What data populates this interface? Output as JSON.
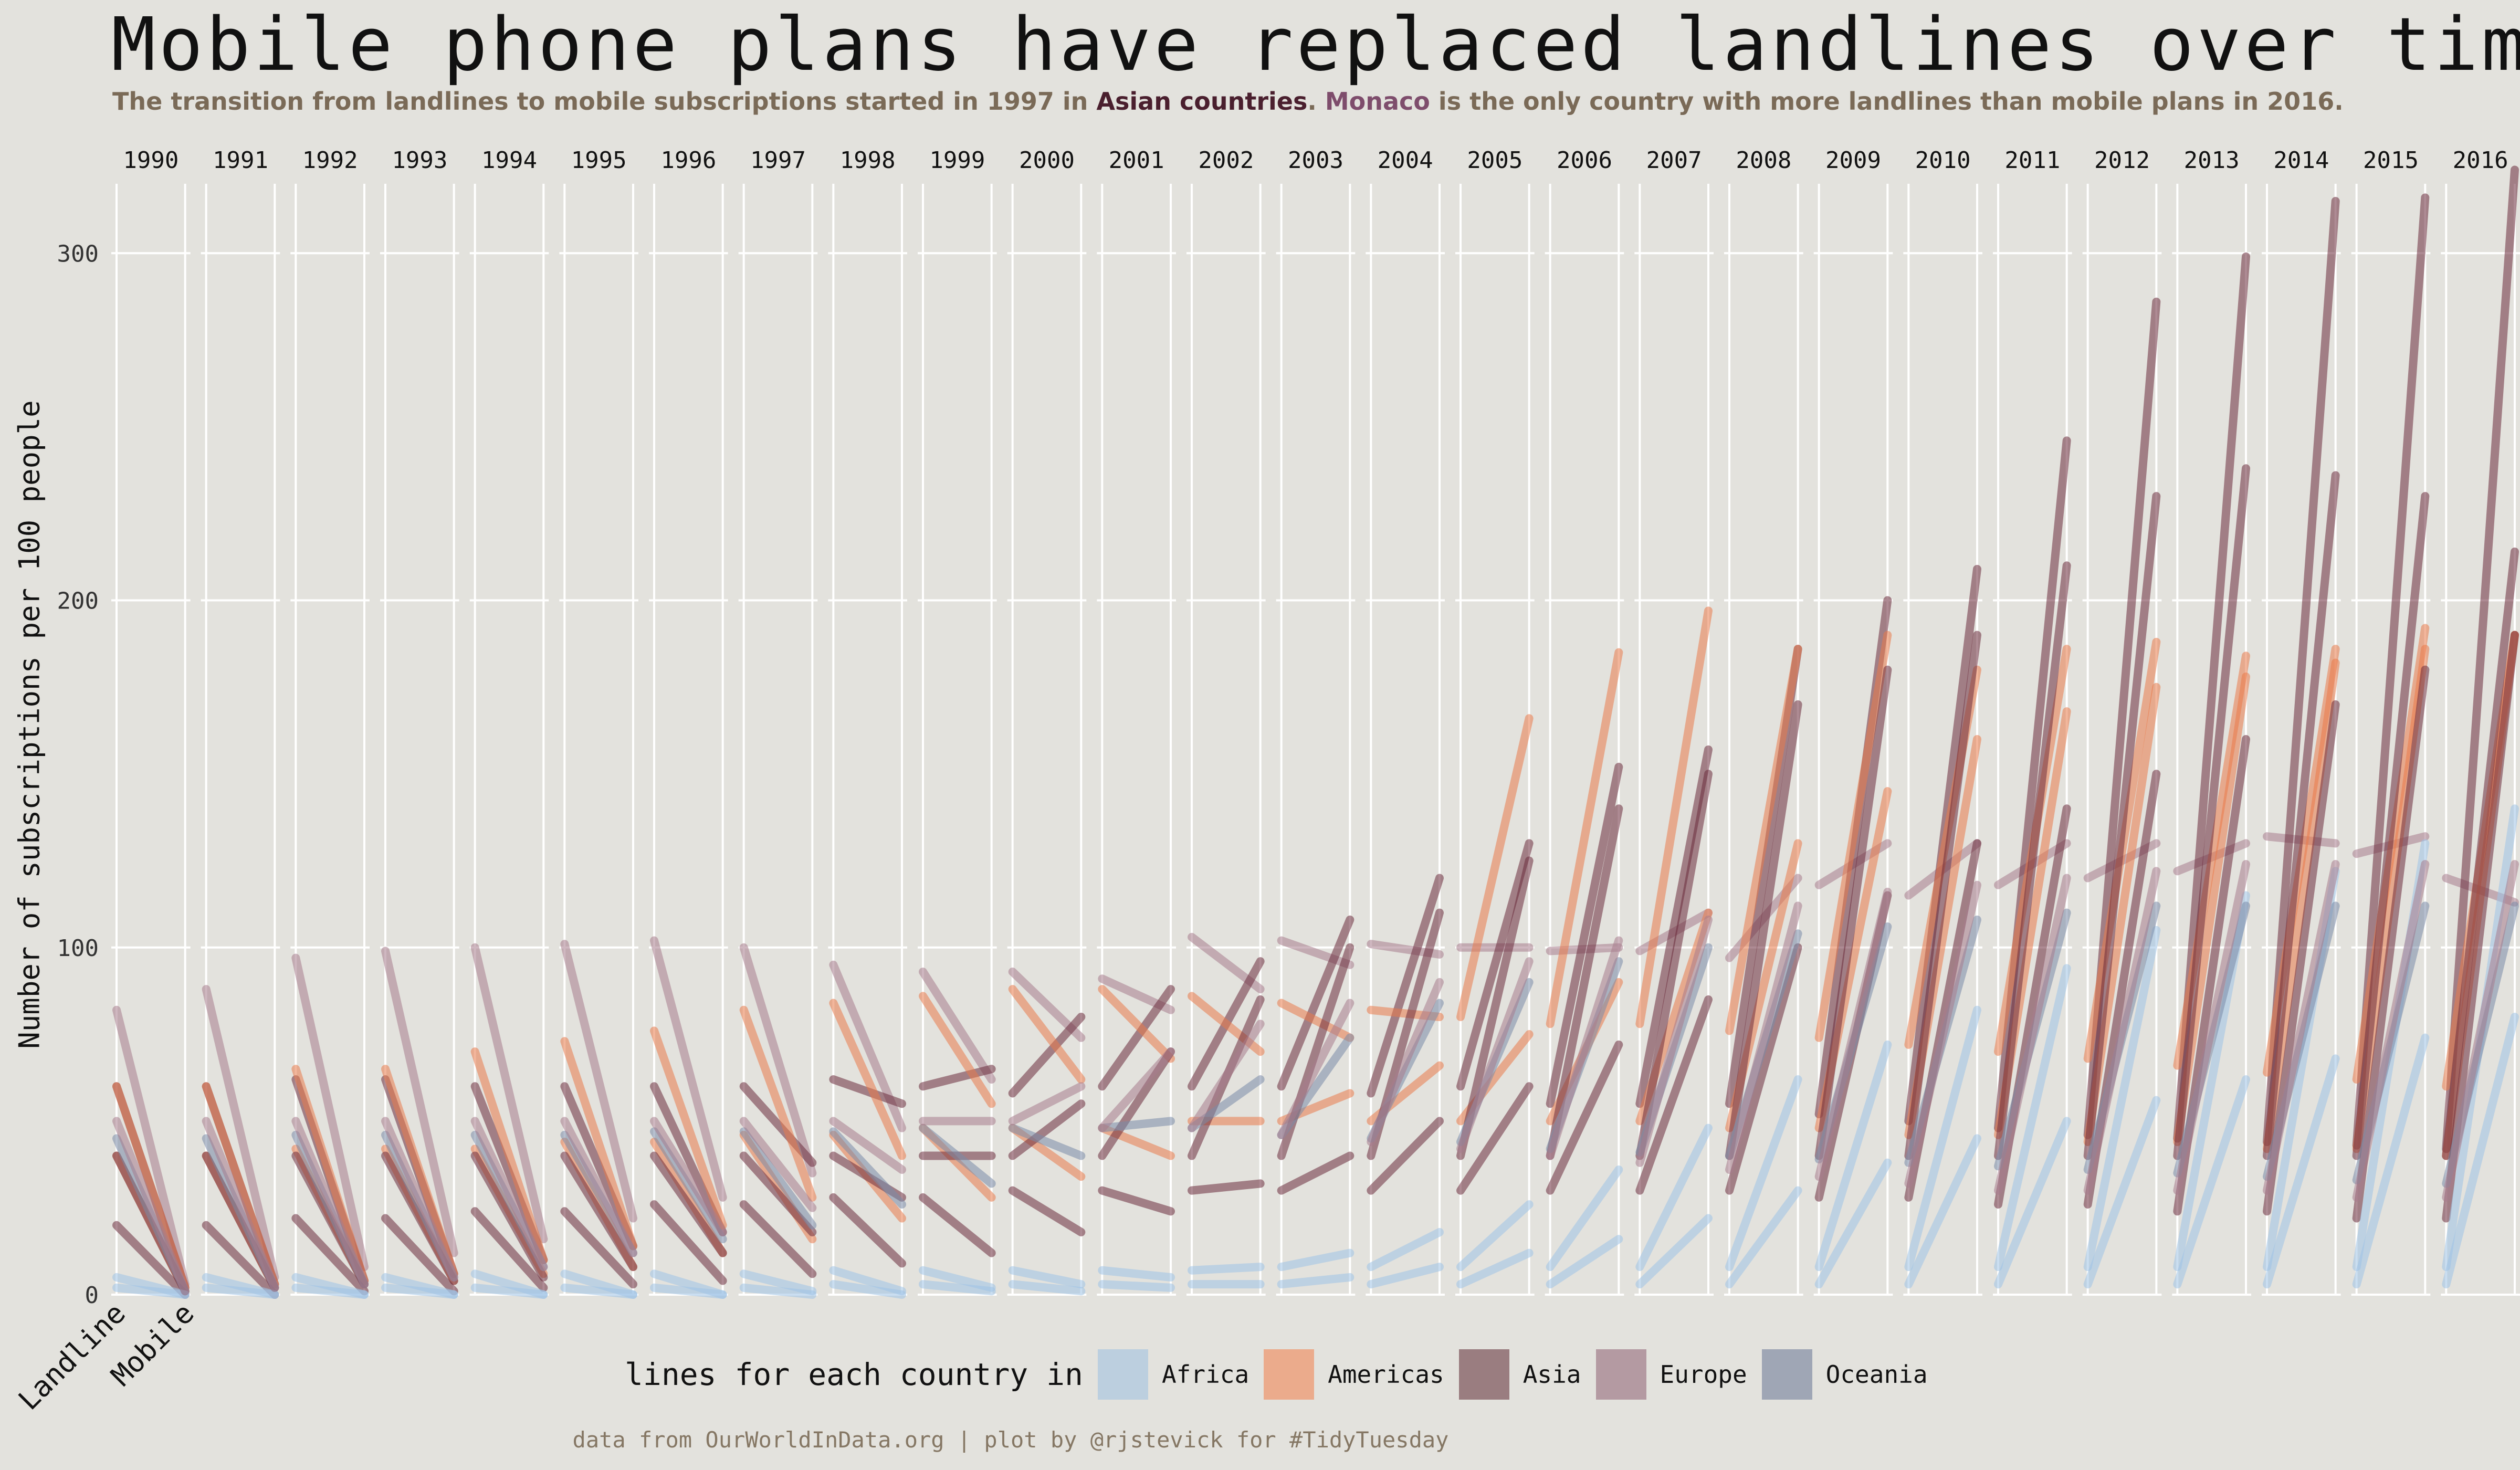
{
  "title": "Mobile phone plans have replaced landlines over time",
  "subtitle": {
    "part1": "The transition from landlines to mobile subscriptions started in 1997 in ",
    "asia_highlight": "Asian countries",
    "part2": ". ",
    "monaco_highlight": "Monaco",
    "part3": " is the only country with more landlines than mobile plans in 2016."
  },
  "legend": {
    "title": "lines for each country in",
    "items": [
      {
        "label": "Africa",
        "color": "#bccfdf"
      },
      {
        "label": "Americas",
        "color": "#ebab8c"
      },
      {
        "label": "Asia",
        "color": "#9a7d80"
      },
      {
        "label": "Europe",
        "color": "#b49aa2"
      },
      {
        "label": "Oceania",
        "color": "#9fa6b5"
      }
    ]
  },
  "caption": "data from OurWorldInData.org | plot by @rjstevick for #TidyTuesday",
  "chart_data": {
    "type": "line",
    "title": "Mobile phone plans have replaced landlines over time",
    "ylabel": "Number of subscriptions per 100 people",
    "ylim": [
      0,
      320
    ],
    "yticks": [
      0,
      100,
      200,
      300
    ],
    "facets": [
      "1990",
      "1991",
      "1992",
      "1993",
      "1994",
      "1995",
      "1996",
      "1997",
      "1998",
      "1999",
      "2000",
      "2001",
      "2002",
      "2003",
      "2004",
      "2005",
      "2006",
      "2007",
      "2008",
      "2009",
      "2010",
      "2011",
      "2012",
      "2013",
      "2014",
      "2015",
      "2016"
    ],
    "x_categories": [
      "Landline",
      "Mobile"
    ],
    "grid": true,
    "colors": {
      "Africa": "#9ec3e6",
      "Americas": "#e97a4a",
      "Asia": "#6b2c3c",
      "Europe": "#a87b8c",
      "Oceania": "#7a8aa8"
    },
    "series": [
      {
        "region": "Europe",
        "landline": [
          82,
          88,
          97,
          99,
          100,
          101,
          102,
          100,
          95,
          93,
          93,
          91,
          103,
          102,
          101,
          100,
          99,
          99,
          97,
          118,
          115,
          118,
          120,
          122,
          132,
          127,
          120
        ],
        "mobile": [
          3,
          5,
          8,
          12,
          16,
          22,
          28,
          35,
          48,
          62,
          74,
          82,
          88,
          95,
          98,
          100,
          100,
          110,
          120,
          130,
          130,
          130,
          130,
          130,
          130,
          132,
          113
        ]
      },
      {
        "region": "Asia",
        "landline": [
          60,
          60,
          62,
          62,
          60,
          60,
          60,
          60,
          62,
          60,
          58,
          60,
          60,
          60,
          58,
          60,
          55,
          55,
          55,
          52,
          50,
          48,
          46,
          45,
          44,
          43,
          42
        ],
        "mobile": [
          2,
          3,
          4,
          6,
          10,
          14,
          18,
          38,
          55,
          65,
          80,
          88,
          96,
          108,
          120,
          130,
          152,
          157,
          186,
          200,
          209,
          246,
          286,
          299,
          315,
          316,
          324
        ]
      },
      {
        "region": "Americas",
        "landline": [
          60,
          60,
          65,
          65,
          70,
          73,
          76,
          82,
          84,
          86,
          88,
          88,
          86,
          84,
          82,
          80,
          78,
          78,
          76,
          74,
          72,
          70,
          68,
          66,
          64,
          62,
          60
        ],
        "mobile": [
          2,
          3,
          4,
          6,
          10,
          14,
          20,
          28,
          40,
          55,
          62,
          68,
          70,
          74,
          80,
          166,
          185,
          197,
          186,
          190,
          180,
          186,
          188,
          184,
          186,
          192,
          190
        ]
      },
      {
        "region": "Americas",
        "landline": [
          40,
          40,
          42,
          42,
          42,
          44,
          44,
          46,
          46,
          48,
          48,
          48,
          50,
          50,
          50,
          50,
          50,
          50,
          48,
          48,
          46,
          46,
          44,
          44,
          42,
          42,
          40
        ],
        "mobile": [
          1,
          2,
          3,
          4,
          6,
          8,
          12,
          16,
          22,
          28,
          34,
          40,
          50,
          58,
          66,
          75,
          90,
          110,
          130,
          145,
          160,
          168,
          175,
          178,
          182,
          186,
          190
        ]
      },
      {
        "region": "Asia",
        "landline": [
          40,
          40,
          40,
          40,
          40,
          40,
          40,
          40,
          40,
          40,
          40,
          40,
          40,
          40,
          40,
          40,
          40,
          40,
          40,
          40,
          40,
          40,
          40,
          40,
          40,
          40,
          40
        ],
        "mobile": [
          1,
          2,
          3,
          4,
          5,
          8,
          12,
          18,
          28,
          40,
          55,
          70,
          85,
          100,
          110,
          125,
          140,
          150,
          170,
          180,
          190,
          210,
          230,
          238,
          236,
          230,
          214
        ]
      },
      {
        "region": "Asia",
        "landline": [
          20,
          20,
          22,
          22,
          24,
          24,
          26,
          26,
          28,
          28,
          30,
          30,
          30,
          30,
          30,
          30,
          30,
          30,
          30,
          28,
          28,
          26,
          26,
          24,
          24,
          22,
          22
        ],
        "mobile": [
          0,
          0,
          1,
          1,
          2,
          3,
          4,
          6,
          9,
          12,
          18,
          24,
          32,
          40,
          50,
          60,
          72,
          85,
          100,
          115,
          130,
          140,
          150,
          160,
          170,
          180,
          190
        ]
      },
      {
        "region": "Africa",
        "landline": [
          5,
          5,
          5,
          5,
          6,
          6,
          6,
          6,
          7,
          7,
          7,
          7,
          7,
          8,
          8,
          8,
          8,
          8,
          8,
          8,
          8,
          8,
          8,
          8,
          8,
          8,
          8
        ],
        "mobile": [
          0,
          0,
          0,
          0,
          0,
          0,
          0,
          1,
          1,
          2,
          3,
          5,
          8,
          12,
          18,
          26,
          36,
          48,
          62,
          72,
          82,
          94,
          105,
          115,
          122,
          130,
          140
        ]
      },
      {
        "region": "Africa",
        "landline": [
          2,
          2,
          2,
          2,
          2,
          2,
          2,
          2,
          3,
          3,
          3,
          3,
          3,
          3,
          3,
          3,
          3,
          3,
          3,
          3,
          3,
          3,
          3,
          3,
          3,
          3,
          3
        ],
        "mobile": [
          0,
          0,
          0,
          0,
          0,
          0,
          0,
          0,
          0,
          1,
          1,
          2,
          3,
          5,
          8,
          12,
          16,
          22,
          30,
          38,
          45,
          50,
          56,
          62,
          68,
          74,
          80
        ]
      },
      {
        "region": "Oceania",
        "landline": [
          45,
          45,
          46,
          46,
          46,
          46,
          47,
          47,
          47,
          48,
          48,
          48,
          48,
          46,
          45,
          44,
          42,
          41,
          40,
          39,
          38,
          37,
          36,
          35,
          34,
          33,
          32
        ],
        "mobile": [
          1,
          2,
          3,
          5,
          8,
          12,
          16,
          20,
          26,
          32,
          40,
          50,
          62,
          74,
          84,
          90,
          96,
          100,
          104,
          106,
          108,
          110,
          112,
          112,
          112,
          112,
          112
        ]
      },
      {
        "region": "Europe",
        "landline": [
          50,
          50,
          50,
          50,
          50,
          50,
          50,
          50,
          50,
          50,
          50,
          48,
          48,
          46,
          44,
          42,
          40,
          38,
          36,
          34,
          32,
          30,
          30,
          30,
          30,
          28,
          28
        ],
        "mobile": [
          1,
          2,
          3,
          5,
          8,
          12,
          18,
          25,
          36,
          50,
          60,
          70,
          78,
          84,
          90,
          96,
          102,
          108,
          112,
          116,
          118,
          120,
          122,
          124,
          124,
          124,
          124
        ]
      }
    ]
  }
}
